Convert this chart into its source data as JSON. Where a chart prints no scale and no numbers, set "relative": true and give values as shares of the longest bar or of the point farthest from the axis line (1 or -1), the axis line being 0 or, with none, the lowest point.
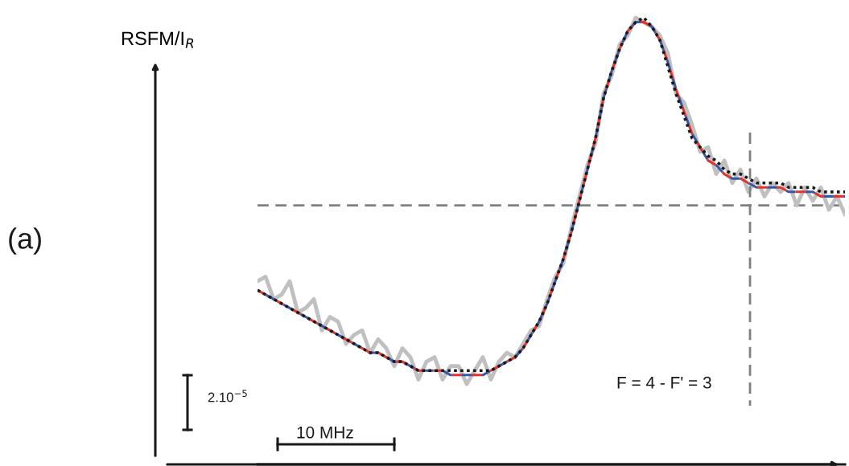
{
  "chart_data": {
    "type": "line",
    "relative": true,
    "ylabel": "RSFM/I$_{R}$",
    "categories": [
      null,
      null,
      null,
      null,
      null,
      null,
      null,
      null,
      null,
      null,
      null,
      null,
      null,
      null,
      null,
      null,
      null,
      null,
      null,
      null,
      null,
      null,
      null,
      null,
      null,
      null,
      null,
      null,
      null,
      null,
      null,
      null,
      null,
      null,
      null,
      null,
      null,
      null,
      null,
      null,
      null,
      null,
      null,
      null,
      null,
      null,
      null,
      null,
      null,
      null,
      null,
      null,
      null,
      null,
      null,
      null,
      null,
      null,
      null,
      null,
      null,
      null,
      null,
      null,
      null,
      null,
      null,
      null,
      null,
      null,
      null,
      null,
      null,
      null
    ],
    "series": [
      {
        "color": "#c0c0c0",
        "line_style": "solid",
        "values": [
          0.41,
          0.42,
          0.37,
          0.38,
          0.41,
          0.34,
          0.35,
          0.37,
          0.3,
          0.33,
          0.32,
          0.27,
          0.29,
          0.3,
          0.25,
          0.28,
          0.26,
          0.22,
          0.26,
          0.24,
          0.19,
          0.23,
          0.24,
          0.19,
          0.22,
          0.22,
          0.18,
          0.21,
          0.24,
          0.19,
          0.23,
          0.25,
          0.24,
          0.27,
          0.3,
          0.31,
          0.37,
          0.42,
          0.45,
          0.53,
          0.6,
          0.67,
          0.72,
          0.83,
          0.87,
          0.94,
          0.96,
          1.0,
          0.99,
          0.98,
          0.96,
          0.92,
          0.83,
          0.81,
          0.76,
          0.7,
          0.71,
          0.65,
          0.68,
          0.63,
          0.66,
          0.61,
          0.64,
          0.6,
          0.63,
          0.61,
          0.63,
          0.58,
          0.62,
          0.59,
          0.62,
          0.57,
          0.6,
          0.56
        ]
      },
      {
        "color": "#e8312a",
        "line_style": "dashed",
        "values": [
          0.39,
          0.38,
          0.37,
          0.36,
          0.35,
          0.34,
          0.33,
          0.32,
          0.31,
          0.3,
          0.29,
          0.28,
          0.27,
          0.26,
          0.25,
          0.25,
          0.24,
          0.23,
          0.23,
          0.22,
          0.21,
          0.21,
          0.21,
          0.21,
          0.2,
          0.2,
          0.2,
          0.2,
          0.2,
          0.21,
          0.22,
          0.23,
          0.24,
          0.26,
          0.29,
          0.32,
          0.36,
          0.41,
          0.46,
          0.52,
          0.59,
          0.66,
          0.73,
          0.82,
          0.88,
          0.93,
          0.97,
          0.99,
          0.99,
          0.98,
          0.95,
          0.9,
          0.84,
          0.79,
          0.74,
          0.71,
          0.68,
          0.67,
          0.65,
          0.64,
          0.64,
          0.63,
          0.62,
          0.62,
          0.62,
          0.62,
          0.61,
          0.61,
          0.61,
          0.61,
          0.6,
          0.6,
          0.6,
          0.6
        ]
      },
      {
        "color": "#3a56a8",
        "line_style": "dashed",
        "values": [
          0.39,
          0.38,
          0.37,
          0.36,
          0.35,
          0.34,
          0.33,
          0.32,
          0.31,
          0.3,
          0.29,
          0.28,
          0.27,
          0.26,
          0.25,
          0.25,
          0.24,
          0.23,
          0.23,
          0.22,
          0.21,
          0.21,
          0.21,
          0.21,
          0.2,
          0.2,
          0.2,
          0.2,
          0.2,
          0.21,
          0.22,
          0.23,
          0.24,
          0.26,
          0.29,
          0.32,
          0.36,
          0.41,
          0.46,
          0.52,
          0.59,
          0.66,
          0.73,
          0.82,
          0.88,
          0.93,
          0.97,
          0.99,
          0.99,
          0.98,
          0.95,
          0.9,
          0.84,
          0.79,
          0.74,
          0.71,
          0.68,
          0.67,
          0.65,
          0.64,
          0.64,
          0.63,
          0.62,
          0.62,
          0.62,
          0.62,
          0.61,
          0.61,
          0.61,
          0.61,
          0.6,
          0.6,
          0.6,
          0.6
        ]
      },
      {
        "color": "#1a1a1a",
        "line_style": "dotted",
        "values": [
          0.39,
          0.38,
          0.37,
          0.36,
          0.35,
          0.34,
          0.33,
          0.32,
          0.31,
          0.3,
          0.29,
          0.28,
          0.27,
          0.26,
          0.25,
          0.25,
          0.24,
          0.23,
          0.23,
          0.22,
          0.21,
          0.21,
          0.21,
          0.21,
          0.21,
          0.21,
          0.21,
          0.21,
          0.21,
          0.21,
          0.22,
          0.23,
          0.24,
          0.26,
          0.29,
          0.32,
          0.36,
          0.41,
          0.46,
          0.52,
          0.59,
          0.66,
          0.73,
          0.82,
          0.88,
          0.93,
          0.97,
          0.99,
          1.0,
          0.98,
          0.95,
          0.89,
          0.83,
          0.78,
          0.73,
          0.71,
          0.69,
          0.68,
          0.66,
          0.65,
          0.65,
          0.64,
          0.63,
          0.63,
          0.63,
          0.63,
          0.62,
          0.62,
          0.62,
          0.62,
          0.61,
          0.61,
          0.61,
          0.61
        ]
      }
    ],
    "ref_lines": [
      {
        "axis": "y",
        "value": 0.58,
        "color": "#808080",
        "line_style": "dashed"
      }
    ],
    "annotations": [
      "(a)",
      "2.10$^{−5}$",
      "10 MHz",
      "F = 4 - F' = 3"
    ]
  }
}
